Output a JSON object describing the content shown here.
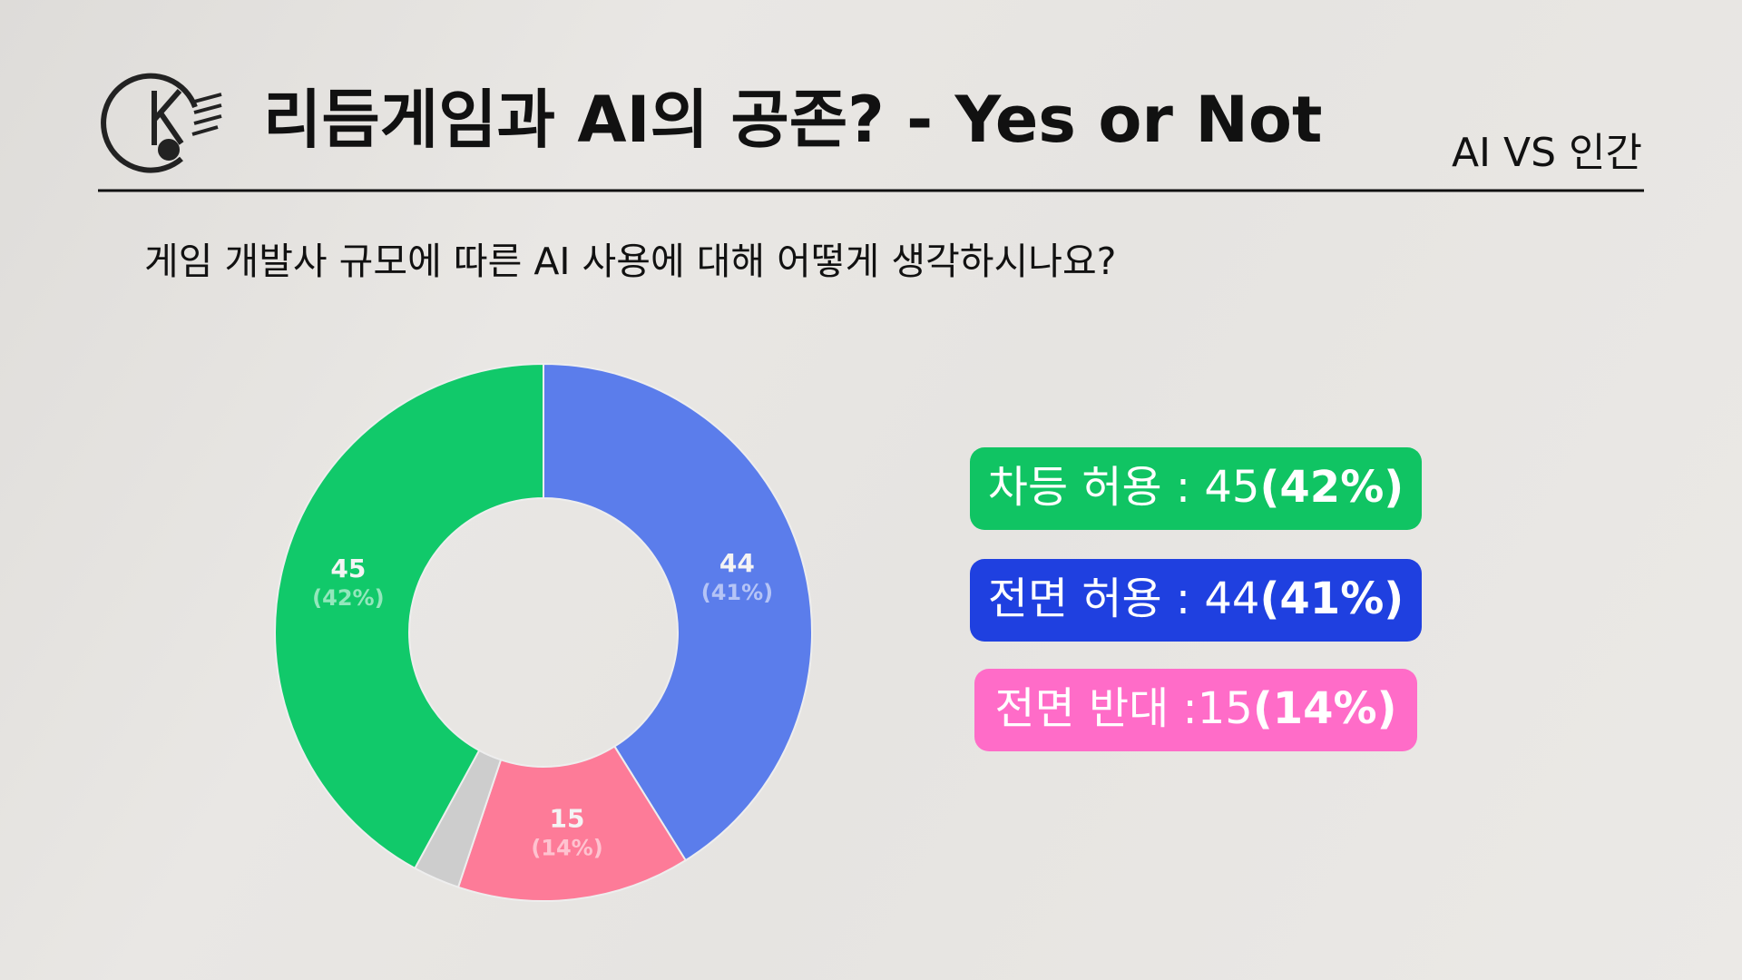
{
  "header": {
    "title": "리듬게임과 AI의 공존? - Yes or Not",
    "tag": "AI VS 인간"
  },
  "question": "게임 개발사 규모에 따른 AI 사용에 대해 어떻게 생각하시나요?",
  "chart_data": {
    "type": "donut",
    "categories": [
      "전면 허용",
      "전면 반대",
      null,
      "차등 허용"
    ],
    "values": [
      44,
      15,
      3,
      45
    ],
    "percent_labels": [
      "(41%)",
      "(14%)",
      null,
      "(42%)"
    ],
    "colors": [
      "#5b7deb",
      "#fd7b98",
      "#cdcdcd",
      "#11c96a"
    ]
  },
  "legend_boxes": [
    {
      "text": "차등 허용 : 45",
      "bold": "(42%)",
      "color": "#10c463"
    },
    {
      "text": "전면 허용 : 44",
      "bold": "(41%)",
      "color": "#1f40e0"
    },
    {
      "text": "전면 반대 :15",
      "bold": "(14%)",
      "color": "#ff6cc8"
    }
  ]
}
